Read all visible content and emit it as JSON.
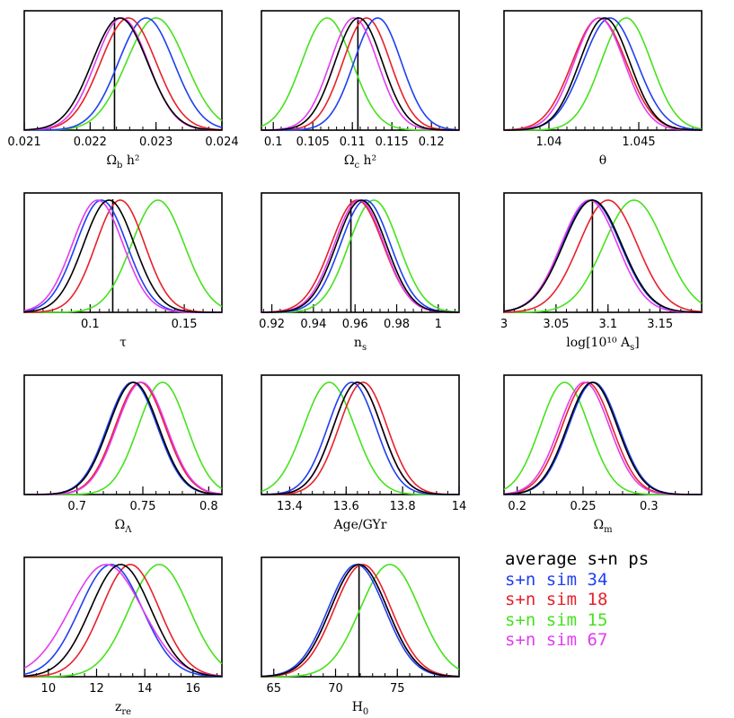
{
  "legend": [
    {
      "label": "average s+n ps",
      "color": "#000000"
    },
    {
      "label": "s+n sim 34",
      "color": "#1f3ff2"
    },
    {
      "label": "s+n sim 18",
      "color": "#e8202a"
    },
    {
      "label": "s+n sim 15",
      "color": "#46e21c"
    },
    {
      "label": "s+n sim 67",
      "color": "#e23cf0"
    }
  ],
  "chart_data": [
    {
      "type": "line",
      "name": "omega-b",
      "xlabel_main": "Ω",
      "xlabel_sub": "b",
      "xlabel_rest": " h²",
      "xlim": [
        0.021,
        0.024
      ],
      "ticks": [
        "0.021",
        "0.022",
        "0.023",
        "0.024"
      ],
      "tick_values": [
        0.021,
        0.022,
        0.023,
        0.024
      ],
      "minor_step": 0.0002,
      "fiducial": 0.02237,
      "series": [
        {
          "name": "average s+n ps",
          "color": "#000000",
          "mean": 0.02245,
          "sigma": 0.00042
        },
        {
          "name": "s+n sim 34",
          "color": "#1f3ff2",
          "mean": 0.02285,
          "sigma": 0.00042
        },
        {
          "name": "s+n sim 18",
          "color": "#e8202a",
          "mean": 0.02258,
          "sigma": 0.00042
        },
        {
          "name": "s+n sim 15",
          "color": "#46e21c",
          "mean": 0.023,
          "sigma": 0.00045
        },
        {
          "name": "s+n sim 67",
          "color": "#e23cf0",
          "mean": 0.02248,
          "sigma": 0.0004
        }
      ]
    },
    {
      "type": "line",
      "name": "omega-c",
      "xlabel_main": "Ω",
      "xlabel_sub": "c",
      "xlabel_rest": " h²",
      "xlim": [
        0.0985,
        0.1235
      ],
      "ticks": [
        "0.1",
        "0.105",
        "0.11",
        "0.115",
        "0.12"
      ],
      "tick_values": [
        0.1,
        0.105,
        0.11,
        0.115,
        0.12
      ],
      "minor_step": 0.001,
      "fiducial": 0.1107,
      "series": [
        {
          "name": "average s+n ps",
          "color": "#000000",
          "mean": 0.1108,
          "sigma": 0.003
        },
        {
          "name": "s+n sim 34",
          "color": "#1f3ff2",
          "mean": 0.1132,
          "sigma": 0.003
        },
        {
          "name": "s+n sim 18",
          "color": "#e8202a",
          "mean": 0.1118,
          "sigma": 0.003
        },
        {
          "name": "s+n sim 15",
          "color": "#46e21c",
          "mean": 0.1068,
          "sigma": 0.0032
        },
        {
          "name": "s+n sim 67",
          "color": "#e23cf0",
          "mean": 0.1102,
          "sigma": 0.003
        }
      ]
    },
    {
      "type": "line",
      "name": "theta",
      "xlabel_main": "θ",
      "xlabel_sub": "",
      "xlabel_rest": "",
      "xlim": [
        1.0375,
        1.0485
      ],
      "ticks": [
        "1.04",
        "1.045"
      ],
      "tick_values": [
        1.04,
        1.045
      ],
      "minor_step": 0.0005,
      "fiducial": null,
      "series": [
        {
          "name": "average s+n ps",
          "color": "#000000",
          "mean": 1.0431,
          "sigma": 0.0014
        },
        {
          "name": "s+n sim 34",
          "color": "#1f3ff2",
          "mean": 1.0434,
          "sigma": 0.0015
        },
        {
          "name": "s+n sim 18",
          "color": "#e8202a",
          "mean": 1.0428,
          "sigma": 0.0015
        },
        {
          "name": "s+n sim 15",
          "color": "#46e21c",
          "mean": 1.0443,
          "sigma": 0.0014
        },
        {
          "name": "s+n sim 67",
          "color": "#e23cf0",
          "mean": 1.0428,
          "sigma": 0.0014
        }
      ]
    },
    {
      "type": "line",
      "name": "tau",
      "xlabel_main": "τ",
      "xlabel_sub": "",
      "xlabel_rest": "",
      "xlim": [
        0.065,
        0.17
      ],
      "ticks": [
        "0.1",
        "0.15"
      ],
      "tick_values": [
        0.1,
        0.15
      ],
      "minor_step": 0.005,
      "fiducial": 0.112,
      "series": [
        {
          "name": "average s+n ps",
          "color": "#000000",
          "mean": 0.11,
          "sigma": 0.0135
        },
        {
          "name": "s+n sim 34",
          "color": "#1f3ff2",
          "mean": 0.106,
          "sigma": 0.0135
        },
        {
          "name": "s+n sim 18",
          "color": "#e8202a",
          "mean": 0.116,
          "sigma": 0.013
        },
        {
          "name": "s+n sim 15",
          "color": "#46e21c",
          "mean": 0.136,
          "sigma": 0.014
        },
        {
          "name": "s+n sim 67",
          "color": "#e23cf0",
          "mean": 0.104,
          "sigma": 0.0135
        }
      ]
    },
    {
      "type": "line",
      "name": "n-s",
      "xlabel_main": "n",
      "xlabel_sub": "s",
      "xlabel_rest": "",
      "xlim": [
        0.915,
        1.01
      ],
      "ticks": [
        "0.92",
        "0.94",
        "0.96",
        "0.98",
        "1"
      ],
      "tick_values": [
        0.92,
        0.94,
        0.96,
        0.98,
        1.0
      ],
      "minor_step": 0.004,
      "fiducial": 0.958,
      "series": [
        {
          "name": "average s+n ps",
          "color": "#000000",
          "mean": 0.963,
          "sigma": 0.012
        },
        {
          "name": "s+n sim 34",
          "color": "#1f3ff2",
          "mean": 0.965,
          "sigma": 0.012
        },
        {
          "name": "s+n sim 18",
          "color": "#e8202a",
          "mean": 0.961,
          "sigma": 0.0125
        },
        {
          "name": "s+n sim 15",
          "color": "#46e21c",
          "mean": 0.969,
          "sigma": 0.012
        },
        {
          "name": "s+n sim 67",
          "color": "#e23cf0",
          "mean": 0.962,
          "sigma": 0.012
        }
      ]
    },
    {
      "type": "line",
      "name": "log-as",
      "xlabel_main": "log[10¹⁰ A",
      "xlabel_sub": "s",
      "xlabel_rest": "]",
      "xlim": [
        3.0,
        3.19
      ],
      "ticks": [
        "3",
        "3.05",
        "3.1",
        "3.15"
      ],
      "tick_values": [
        3.0,
        3.05,
        3.1,
        3.15
      ],
      "minor_step": 0.01,
      "fiducial": 3.085,
      "series": [
        {
          "name": "average s+n ps",
          "color": "#000000",
          "mean": 3.085,
          "sigma": 0.028
        },
        {
          "name": "s+n sim 34",
          "color": "#1f3ff2",
          "mean": 3.084,
          "sigma": 0.028
        },
        {
          "name": "s+n sim 18",
          "color": "#e8202a",
          "mean": 3.1,
          "sigma": 0.028
        },
        {
          "name": "s+n sim 15",
          "color": "#46e21c",
          "mean": 3.125,
          "sigma": 0.029
        },
        {
          "name": "s+n sim 67",
          "color": "#e23cf0",
          "mean": 3.082,
          "sigma": 0.027
        }
      ]
    },
    {
      "type": "line",
      "name": "omega-lambda",
      "xlabel_main": "Ω",
      "xlabel_sub": "Λ",
      "xlabel_rest": "",
      "xlim": [
        0.66,
        0.81
      ],
      "ticks": [
        "0.7",
        "0.75",
        "0.8"
      ],
      "tick_values": [
        0.7,
        0.75,
        0.8
      ],
      "minor_step": 0.01,
      "fiducial": null,
      "series": [
        {
          "name": "average s+n ps",
          "color": "#000000",
          "mean": 0.743,
          "sigma": 0.019
        },
        {
          "name": "s+n sim 34",
          "color": "#1f3ff2",
          "mean": 0.742,
          "sigma": 0.019
        },
        {
          "name": "s+n sim 18",
          "color": "#e8202a",
          "mean": 0.748,
          "sigma": 0.019
        },
        {
          "name": "s+n sim 15",
          "color": "#46e21c",
          "mean": 0.765,
          "sigma": 0.0185
        },
        {
          "name": "s+n sim 67",
          "color": "#e23cf0",
          "mean": 0.749,
          "sigma": 0.019
        }
      ]
    },
    {
      "type": "line",
      "name": "age",
      "xlabel_main": "Age/GYr",
      "xlabel_sub": "",
      "xlabel_rest": "",
      "xlim": [
        13.3,
        14.0
      ],
      "ticks": [
        "13.4",
        "13.6",
        "13.8",
        "14"
      ],
      "tick_values": [
        13.4,
        13.6,
        13.8,
        14.0
      ],
      "minor_step": 0.04,
      "fiducial": null,
      "series": [
        {
          "name": "average s+n ps",
          "color": "#000000",
          "mean": 13.64,
          "sigma": 0.085
        },
        {
          "name": "s+n sim 34",
          "color": "#1f3ff2",
          "mean": 13.62,
          "sigma": 0.085
        },
        {
          "name": "s+n sim 18",
          "color": "#e8202a",
          "mean": 13.66,
          "sigma": 0.085
        },
        {
          "name": "s+n sim 15",
          "color": "#46e21c",
          "mean": 13.54,
          "sigma": 0.09
        },
        {
          "name": "s+n sim 67",
          "color": "#e23cf0",
          "mean": 13.64,
          "sigma": 0.085
        }
      ]
    },
    {
      "type": "line",
      "name": "omega-m",
      "xlabel_main": "Ω",
      "xlabel_sub": "m",
      "xlabel_rest": "",
      "xlim": [
        0.19,
        0.34
      ],
      "ticks": [
        "0.2",
        "0.25",
        "0.3"
      ],
      "tick_values": [
        0.2,
        0.25,
        0.3
      ],
      "minor_step": 0.01,
      "fiducial": null,
      "series": [
        {
          "name": "average s+n ps",
          "color": "#000000",
          "mean": 0.257,
          "sigma": 0.019
        },
        {
          "name": "s+n sim 34",
          "color": "#1f3ff2",
          "mean": 0.258,
          "sigma": 0.019
        },
        {
          "name": "s+n sim 18",
          "color": "#e8202a",
          "mean": 0.253,
          "sigma": 0.019
        },
        {
          "name": "s+n sim 15",
          "color": "#46e21c",
          "mean": 0.236,
          "sigma": 0.0185
        },
        {
          "name": "s+n sim 67",
          "color": "#e23cf0",
          "mean": 0.251,
          "sigma": 0.019
        }
      ]
    },
    {
      "type": "line",
      "name": "z-re",
      "xlabel_main": "z",
      "xlabel_sub": "re",
      "xlabel_rest": "",
      "xlim": [
        9.0,
        17.2
      ],
      "ticks": [
        "10",
        "12",
        "14",
        "16"
      ],
      "tick_values": [
        10,
        12,
        14,
        16
      ],
      "minor_step": 0.5,
      "fiducial": null,
      "series": [
        {
          "name": "average s+n ps",
          "color": "#000000",
          "mean": 13.0,
          "sigma": 1.25
        },
        {
          "name": "s+n sim 34",
          "color": "#1f3ff2",
          "mean": 12.6,
          "sigma": 1.3
        },
        {
          "name": "s+n sim 18",
          "color": "#e8202a",
          "mean": 13.4,
          "sigma": 1.2
        },
        {
          "name": "s+n sim 15",
          "color": "#46e21c",
          "mean": 14.6,
          "sigma": 1.25
        },
        {
          "name": "s+n sim 67",
          "color": "#e23cf0",
          "mean": 12.4,
          "sigma": 1.5
        }
      ]
    },
    {
      "type": "line",
      "name": "h0",
      "xlabel_main": "H",
      "xlabel_sub": "0",
      "xlabel_rest": "",
      "xlim": [
        64.0,
        80.0
      ],
      "ticks": [
        "65",
        "70",
        "75"
      ],
      "tick_values": [
        65,
        70,
        75
      ],
      "minor_step": 1,
      "fiducial": 71.9,
      "series": [
        {
          "name": "average s+n ps",
          "color": "#000000",
          "mean": 71.9,
          "sigma": 2.3
        },
        {
          "name": "s+n sim 34",
          "color": "#1f3ff2",
          "mean": 71.7,
          "sigma": 2.3
        },
        {
          "name": "s+n sim 18",
          "color": "#e8202a",
          "mean": 72.2,
          "sigma": 2.3
        },
        {
          "name": "s+n sim 15",
          "color": "#46e21c",
          "mean": 74.4,
          "sigma": 2.4
        },
        {
          "name": "s+n sim 67",
          "color": "#e23cf0",
          "mean": 71.9,
          "sigma": 2.3
        }
      ]
    }
  ]
}
